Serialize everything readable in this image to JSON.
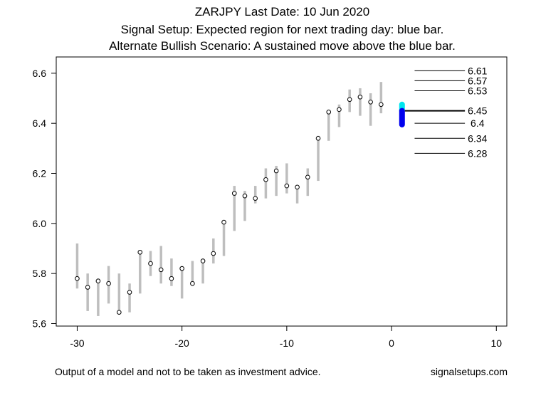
{
  "titles": {
    "line1": "ZARJPY Last Date: 10 Jun 2020",
    "line2": "Signal Setup: Expected region for next trading day: blue bar.",
    "line3": "Alternate Bullish Scenario: A sustained move above the blue bar."
  },
  "footer": {
    "left": "Output of a model and not to be taken as investment advice.",
    "right": "signalsetups.com"
  },
  "chart_data": {
    "type": "scatter",
    "xlim": [
      -32,
      11
    ],
    "ylim": [
      5.59,
      6.665
    ],
    "x_ticks": [
      -30,
      -20,
      -10,
      0,
      10
    ],
    "x_tick_labels": [
      "-30",
      "-20",
      "-10",
      "0",
      "10"
    ],
    "y_ticks": [
      5.6,
      5.8,
      6.0,
      6.2,
      6.4,
      6.6
    ],
    "y_tick_labels": [
      "5.6",
      "5.8",
      "6.0",
      "6.2",
      "6.4",
      "6.6"
    ],
    "grid": false,
    "colors": {
      "range_bar": "#bebebe",
      "point_fill": "#ffffff",
      "point_stroke": "#000000",
      "bullish_bar": "#00e5ee",
      "expected_bar": "#0000ee",
      "level_line": "#000000"
    },
    "daily": [
      {
        "x": -30,
        "low": 5.74,
        "high": 5.92,
        "close": 5.78
      },
      {
        "x": -29,
        "low": 5.65,
        "high": 5.8,
        "close": 5.745
      },
      {
        "x": -28,
        "low": 5.63,
        "high": 5.78,
        "close": 5.77
      },
      {
        "x": -27,
        "low": 5.68,
        "high": 5.83,
        "close": 5.76
      },
      {
        "x": -26,
        "low": 5.64,
        "high": 5.8,
        "close": 5.645
      },
      {
        "x": -25,
        "low": 5.645,
        "high": 5.76,
        "close": 5.725
      },
      {
        "x": -24,
        "low": 5.72,
        "high": 5.89,
        "close": 5.885
      },
      {
        "x": -23,
        "low": 5.79,
        "high": 5.89,
        "close": 5.84
      },
      {
        "x": -22,
        "low": 5.76,
        "high": 5.91,
        "close": 5.815
      },
      {
        "x": -21,
        "low": 5.75,
        "high": 5.86,
        "close": 5.78
      },
      {
        "x": -20,
        "low": 5.7,
        "high": 5.83,
        "close": 5.82
      },
      {
        "x": -19,
        "low": 5.75,
        "high": 5.85,
        "close": 5.76
      },
      {
        "x": -18,
        "low": 5.76,
        "high": 5.86,
        "close": 5.85
      },
      {
        "x": -17,
        "low": 5.84,
        "high": 5.94,
        "close": 5.88
      },
      {
        "x": -16,
        "low": 5.87,
        "high": 6.01,
        "close": 6.005
      },
      {
        "x": -15,
        "low": 5.97,
        "high": 6.15,
        "close": 6.12
      },
      {
        "x": -14,
        "low": 6.01,
        "high": 6.13,
        "close": 6.11
      },
      {
        "x": -13,
        "low": 6.08,
        "high": 6.15,
        "close": 6.1
      },
      {
        "x": -12,
        "low": 6.1,
        "high": 6.22,
        "close": 6.175
      },
      {
        "x": -11,
        "low": 6.11,
        "high": 6.23,
        "close": 6.21
      },
      {
        "x": -10,
        "low": 6.12,
        "high": 6.24,
        "close": 6.15
      },
      {
        "x": -9,
        "low": 6.08,
        "high": 6.15,
        "close": 6.145
      },
      {
        "x": -8,
        "low": 6.11,
        "high": 6.22,
        "close": 6.185
      },
      {
        "x": -7,
        "low": 6.17,
        "high": 6.35,
        "close": 6.34
      },
      {
        "x": -6,
        "low": 6.33,
        "high": 6.45,
        "close": 6.445
      },
      {
        "x": -5,
        "low": 6.385,
        "high": 6.475,
        "close": 6.455
      },
      {
        "x": -4,
        "low": 6.445,
        "high": 6.535,
        "close": 6.495
      },
      {
        "x": -3,
        "low": 6.43,
        "high": 6.54,
        "close": 6.505
      },
      {
        "x": -2,
        "low": 6.39,
        "high": 6.52,
        "close": 6.485
      },
      {
        "x": -1,
        "low": 6.44,
        "high": 6.565,
        "close": 6.475
      }
    ],
    "signal_bars": {
      "x": 1,
      "bullish": {
        "low": 6.45,
        "high": 6.475
      },
      "expected": {
        "low": 6.395,
        "high": 6.45
      }
    },
    "levels": [
      {
        "value": 6.61,
        "label": "6.61",
        "line_style": "thin"
      },
      {
        "value": 6.57,
        "label": "6.57",
        "line_style": "thin"
      },
      {
        "value": 6.53,
        "label": "6.53",
        "line_style": "thin"
      },
      {
        "value": 6.45,
        "label": "6.45",
        "line_style": "thick"
      },
      {
        "value": 6.4,
        "label": "6.4",
        "line_style": "thin"
      },
      {
        "value": 6.34,
        "label": "6.34",
        "line_style": "thin"
      },
      {
        "value": 6.28,
        "label": "6.28",
        "line_style": "thin"
      }
    ]
  }
}
